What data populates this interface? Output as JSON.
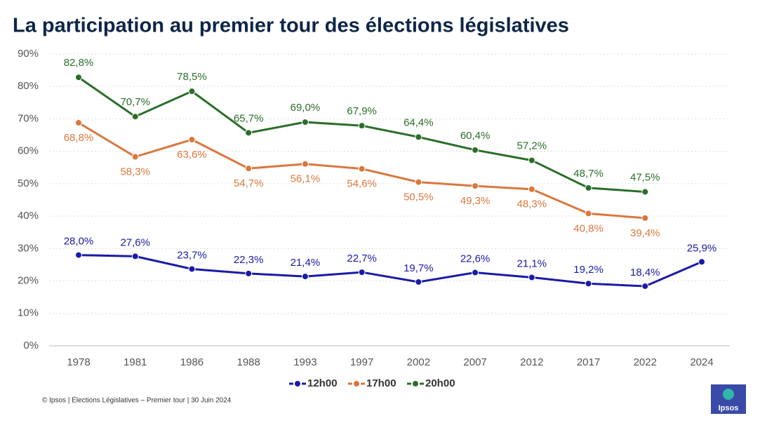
{
  "chart_data": {
    "type": "line",
    "title": "La participation au premier tour des élections législatives",
    "categories": [
      "1978",
      "1981",
      "1986",
      "1988",
      "1993",
      "1997",
      "2002",
      "2007",
      "2012",
      "2017",
      "2022",
      "2024"
    ],
    "series": [
      {
        "name": "12h00",
        "color": "#1a1aa6",
        "values": [
          28.0,
          27.6,
          23.7,
          22.3,
          21.4,
          22.7,
          19.7,
          22.6,
          21.1,
          19.2,
          18.4,
          25.9
        ],
        "value_labels": [
          "28,0%",
          "27,6%",
          "23,7%",
          "22,3%",
          "21,4%",
          "22,7%",
          "19,7%",
          "22,6%",
          "21,1%",
          "19,2%",
          "18,4%",
          "25,9%"
        ]
      },
      {
        "name": "17h00",
        "color": "#d9783e",
        "values": [
          68.8,
          58.3,
          63.6,
          54.7,
          56.1,
          54.6,
          50.5,
          49.3,
          48.3,
          40.8,
          39.4,
          null
        ],
        "value_labels": [
          "68,8%",
          "58,3%",
          "63,6%",
          "54,7%",
          "56,1%",
          "54,6%",
          "50,5%",
          "49,3%",
          "48,3%",
          "40,8%",
          "39,4%",
          null
        ]
      },
      {
        "name": "20h00",
        "color": "#2a6e2a",
        "values": [
          82.8,
          70.7,
          78.5,
          65.7,
          69.0,
          67.9,
          64.4,
          60.4,
          57.2,
          48.7,
          47.5,
          null
        ],
        "value_labels": [
          "82,8%",
          "70,7%",
          "78,5%",
          "65,7%",
          "69,0%",
          "67,9%",
          "64,4%",
          "60,4%",
          "57,2%",
          "48,7%",
          "47,5%",
          null
        ]
      }
    ],
    "ylim": [
      0,
      90
    ],
    "yticks": [
      {
        "value": 0,
        "label": "0%"
      },
      {
        "value": 10,
        "label": "10%"
      },
      {
        "value": 20,
        "label": "20%"
      },
      {
        "value": 30,
        "label": "30%"
      },
      {
        "value": 40,
        "label": "40%"
      },
      {
        "value": 50,
        "label": "50%"
      },
      {
        "value": 60,
        "label": "60%"
      },
      {
        "value": 70,
        "label": "70%"
      },
      {
        "value": 80,
        "label": "80%"
      },
      {
        "value": 90,
        "label": "90%"
      }
    ],
    "grid": true,
    "legend": "bottom"
  },
  "footer": "© Ipsos | Élections Législatives – Premier tour | 30 Juin 2024",
  "logo": "Ipsos"
}
